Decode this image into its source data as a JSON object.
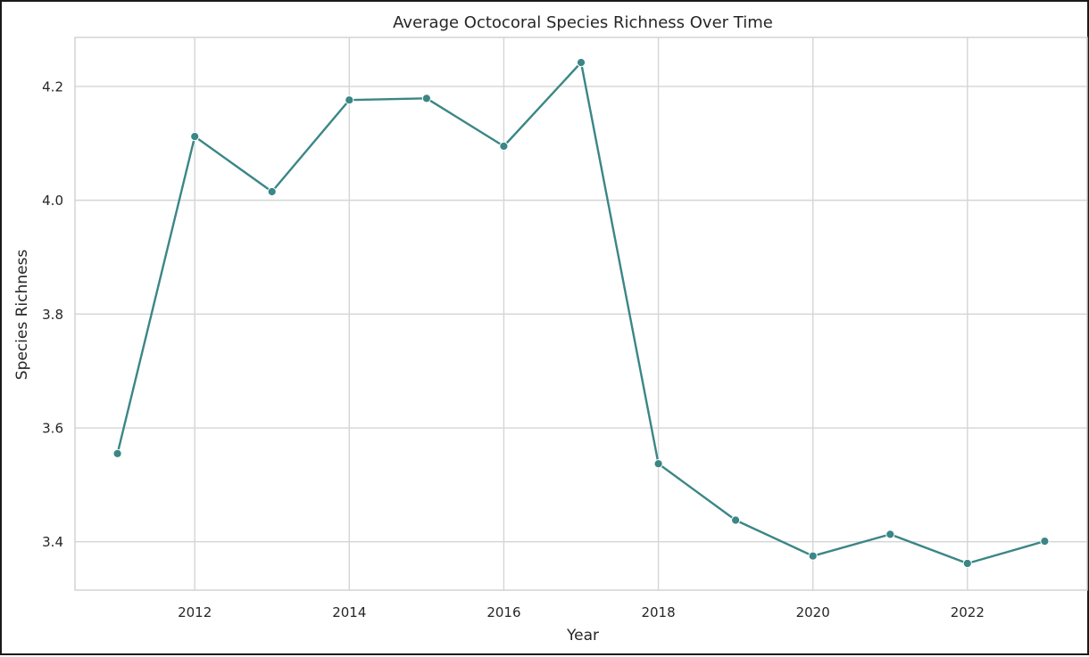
{
  "chart_data": {
    "type": "line",
    "title": "Average Octocoral Species Richness Over Time",
    "xlabel": "Year",
    "ylabel": "Species Richness",
    "x": [
      2011,
      2012,
      2013,
      2014,
      2015,
      2016,
      2017,
      2018,
      2019,
      2020,
      2021,
      2022,
      2023
    ],
    "series": [
      {
        "values": [
          3.555,
          4.112,
          4.015,
          4.176,
          4.179,
          4.095,
          4.242,
          3.537,
          3.438,
          3.375,
          3.413,
          3.362,
          3.401
        ],
        "color": "#3b8686"
      }
    ],
    "xlim": [
      2010.45,
      2023.55
    ],
    "ylim": [
      3.315,
      4.286
    ],
    "xticks": [
      2012,
      2014,
      2016,
      2018,
      2020,
      2022
    ],
    "xtick_labels": [
      "2012",
      "2014",
      "2016",
      "2018",
      "2020",
      "2022"
    ],
    "yticks": [
      3.4,
      3.6,
      3.8,
      4.0,
      4.2
    ],
    "ytick_labels": [
      "3.4",
      "3.6",
      "3.8",
      "4.0",
      "4.2"
    ],
    "grid": true,
    "marker": "circle",
    "colors": {
      "grid": "#d5d5d5",
      "frame": "#cfcfcf",
      "text": "#262626",
      "line": "#3b8686"
    }
  }
}
